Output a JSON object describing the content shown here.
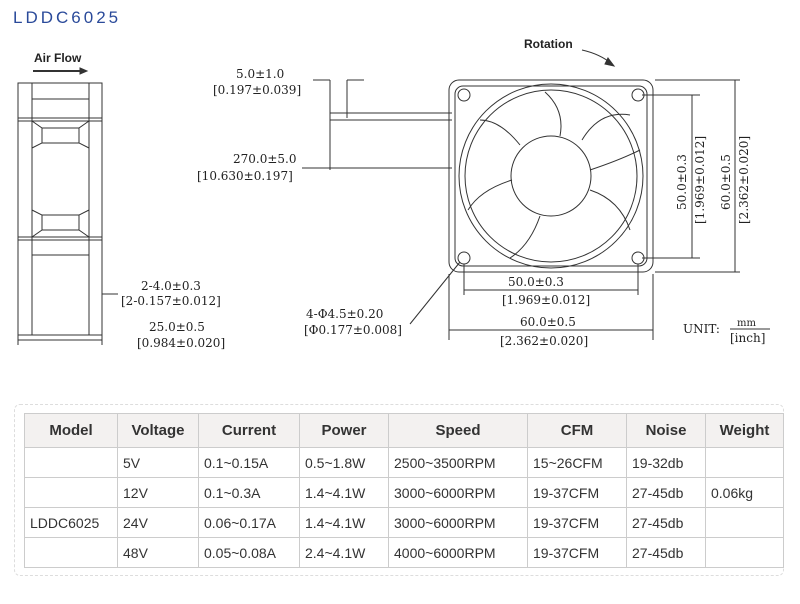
{
  "title": "LDDC6025",
  "drawing": {
    "air_flow": "Air Flow",
    "rotation": "Rotation",
    "dim_lead_strip": "5.0±1.0",
    "dim_lead_strip_in": "[0.197±0.039]",
    "dim_lead_len": "270.0±5.0",
    "dim_lead_len_in": "[10.630±0.197]",
    "dim_rib": "2-4.0±0.3",
    "dim_rib_in": "[2-0.157±0.012]",
    "dim_depth": "25.0±0.5",
    "dim_depth_in": "[0.984±0.020]",
    "dim_hole": "4-Φ4.5±0.20",
    "dim_hole_in": "[Φ0.177±0.008]",
    "dim_pitch": "50.0±0.3",
    "dim_pitch_in": "[1.969±0.012]",
    "dim_width": "60.0±0.5",
    "dim_width_in": "[2.362±0.020]",
    "dim_pitch_v": "50.0±0.3",
    "dim_pitch_v_in": "[1.969±0.012]",
    "dim_height": "60.0±0.5",
    "dim_height_in": "[2.362±0.020]",
    "unit_label": "UNIT:",
    "unit_mm": "mm",
    "unit_inch": "[inch]"
  },
  "table": {
    "headers": [
      "Model",
      "Voltage",
      "Current",
      "Power",
      "Speed",
      "CFM",
      "Noise",
      "Weight"
    ],
    "model": "LDDC6025",
    "weight": "0.06kg",
    "rows": [
      [
        "5V",
        "0.1~0.15A",
        "0.5~1.8W",
        "2500~3500RPM",
        "15~26CFM",
        "19-32db"
      ],
      [
        "12V",
        "0.1~0.3A",
        "1.4~4.1W",
        "3000~6000RPM",
        "19-37CFM",
        "27-45db"
      ],
      [
        "24V",
        "0.06~0.17A",
        "1.4~4.1W",
        "3000~6000RPM",
        "19-37CFM",
        "27-45db"
      ],
      [
        "48V",
        "0.05~0.08A",
        "2.4~4.1W",
        "4000~6000RPM",
        "19-37CFM",
        "27-45db"
      ]
    ]
  }
}
